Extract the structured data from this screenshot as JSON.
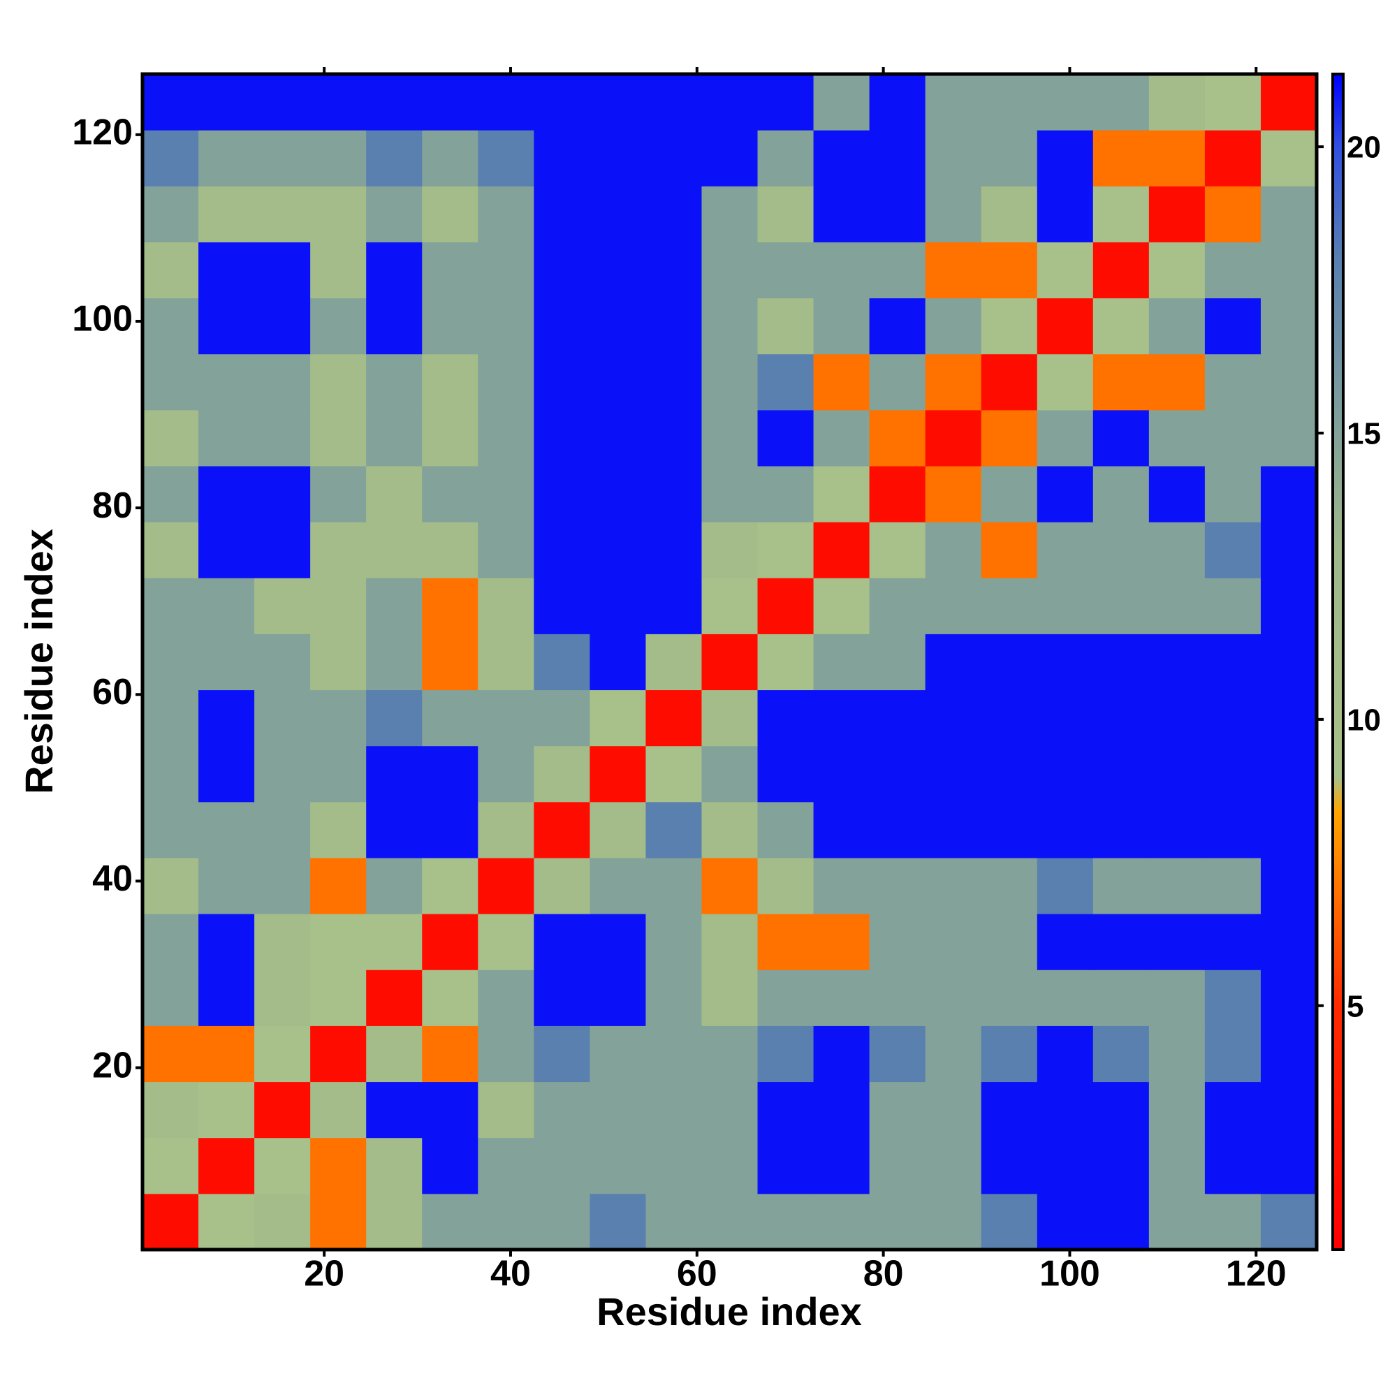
{
  "chart_data": {
    "type": "heatmap",
    "xlabel": "Residue index",
    "ylabel": "Residue index",
    "xbins": [
      0.5,
      6.5,
      12.5,
      18.5,
      24.5,
      30.5,
      36.5,
      42.5,
      48.5,
      54.5,
      60.5,
      66.5,
      72.5,
      78.5,
      84.5,
      90.5,
      96.5,
      102.5,
      108.5,
      114.5,
      120.5,
      126.5
    ],
    "ybins": [
      0.5,
      6.5,
      12.5,
      18.5,
      24.5,
      30.5,
      36.5,
      42.5,
      48.5,
      54.5,
      60.5,
      66.5,
      72.5,
      78.5,
      84.5,
      90.5,
      96.5,
      102.5,
      108.5,
      114.5,
      120.5,
      126.5
    ],
    "xlim": [
      0.5,
      126.5
    ],
    "ylim": [
      0.5,
      126.5
    ],
    "xticks": [
      20,
      40,
      60,
      80,
      100,
      120
    ],
    "yticks": [
      20,
      40,
      60,
      80,
      100,
      120
    ],
    "clim": [
      0.74,
      21.27
    ],
    "cticks": [
      5,
      10,
      15,
      20
    ],
    "colorscale": [
      [
        0.74,
        "#ff0000"
      ],
      [
        5,
        "#ff2a00"
      ],
      [
        8.4,
        "#ffa500"
      ],
      [
        9,
        "#a8c08a"
      ],
      [
        13,
        "#9fb88a"
      ],
      [
        18,
        "#5a80b0"
      ],
      [
        20,
        "#3050e0"
      ],
      [
        21.27,
        "#0000ff"
      ]
    ],
    "z": [
      [
        2,
        9,
        11,
        7,
        11,
        15,
        15,
        15,
        18,
        15,
        15,
        15,
        15,
        15,
        15,
        18,
        21,
        21,
        15,
        15,
        18
      ],
      [
        9,
        2,
        9,
        7,
        11,
        21,
        15,
        15,
        15,
        15,
        15,
        21,
        21,
        15,
        15,
        21,
        21,
        21,
        15,
        21,
        21
      ],
      [
        11,
        9,
        2,
        11,
        21,
        21,
        11,
        15,
        15,
        15,
        15,
        21,
        21,
        15,
        15,
        21,
        21,
        21,
        15,
        21,
        21
      ],
      [
        7,
        7,
        9,
        2,
        11,
        7,
        15,
        18,
        15,
        15,
        15,
        18,
        21,
        18,
        15,
        18,
        21,
        18,
        15,
        18,
        21
      ],
      [
        15,
        21,
        11,
        9,
        2,
        9,
        15,
        21,
        21,
        15,
        11,
        15,
        15,
        15,
        15,
        15,
        15,
        15,
        15,
        18,
        21
      ],
      [
        15,
        21,
        11,
        9,
        9,
        2,
        9,
        21,
        21,
        15,
        11,
        7,
        7,
        15,
        15,
        15,
        21,
        21,
        21,
        21,
        21
      ],
      [
        11,
        15,
        15,
        7,
        15,
        9,
        2,
        11,
        15,
        15,
        7,
        11,
        15,
        15,
        15,
        15,
        18,
        15,
        15,
        15,
        21
      ],
      [
        15,
        15,
        15,
        11,
        21,
        21,
        11,
        2,
        11,
        18,
        11,
        15,
        21,
        21,
        21,
        21,
        21,
        21,
        21,
        21,
        21
      ],
      [
        15,
        21,
        15,
        15,
        21,
        21,
        15,
        11,
        2,
        9,
        15,
        21,
        21,
        21,
        21,
        21,
        21,
        21,
        21,
        21,
        21
      ],
      [
        15,
        21,
        15,
        15,
        18,
        15,
        15,
        15,
        9,
        2,
        11,
        21,
        21,
        21,
        21,
        21,
        21,
        21,
        21,
        21,
        21
      ],
      [
        15,
        15,
        15,
        11,
        15,
        7,
        11,
        18,
        21,
        11,
        2,
        9,
        15,
        15,
        21,
        21,
        21,
        21,
        21,
        21,
        21
      ],
      [
        15,
        15,
        11,
        11,
        15,
        7,
        11,
        21,
        21,
        21,
        9,
        2,
        9,
        15,
        15,
        15,
        15,
        15,
        15,
        15,
        21
      ],
      [
        11,
        21,
        21,
        11,
        11,
        11,
        15,
        21,
        21,
        21,
        11,
        9,
        2,
        9,
        15,
        7,
        15,
        15,
        15,
        18,
        21
      ],
      [
        15,
        21,
        21,
        15,
        11,
        15,
        15,
        21,
        21,
        21,
        15,
        15,
        9,
        2,
        7,
        15,
        21,
        15,
        21,
        15,
        21
      ],
      [
        11,
        15,
        15,
        11,
        15,
        11,
        15,
        21,
        21,
        21,
        15,
        21,
        15,
        7,
        2,
        7,
        15,
        21,
        15,
        15,
        15
      ],
      [
        15,
        15,
        15,
        11,
        15,
        11,
        15,
        21,
        21,
        21,
        15,
        18,
        7,
        15,
        7,
        2,
        9,
        7,
        7,
        15,
        15
      ],
      [
        15,
        21,
        21,
        15,
        21,
        15,
        15,
        21,
        21,
        21,
        15,
        11,
        15,
        21,
        15,
        9,
        2,
        9,
        15,
        21,
        15
      ],
      [
        11,
        21,
        21,
        11,
        21,
        15,
        15,
        21,
        21,
        21,
        15,
        15,
        15,
        15,
        7,
        7,
        9,
        2,
        9,
        15,
        15
      ],
      [
        15,
        11,
        11,
        11,
        15,
        11,
        15,
        21,
        21,
        21,
        15,
        11,
        21,
        21,
        15,
        11,
        21,
        9,
        2,
        7,
        15
      ],
      [
        18,
        15,
        15,
        15,
        18,
        15,
        18,
        21,
        21,
        21,
        21,
        15,
        21,
        21,
        15,
        15,
        21,
        7,
        7,
        2,
        9
      ],
      [
        21,
        21,
        21,
        21,
        21,
        21,
        21,
        21,
        21,
        21,
        21,
        21,
        15,
        21,
        15,
        15,
        15,
        15,
        11,
        9,
        2
      ]
    ]
  }
}
